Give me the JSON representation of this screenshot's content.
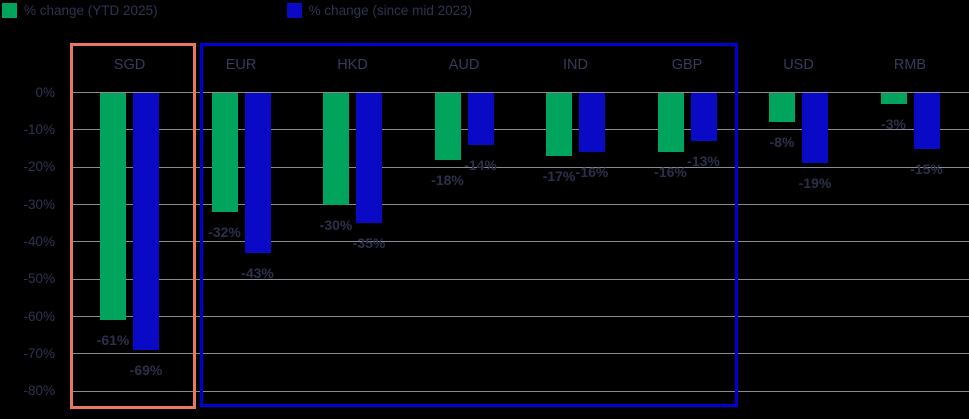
{
  "legend": [
    {
      "label": "% change (YTD 2025)",
      "color": "#00a45c"
    },
    {
      "label": "% change (since mid 2023)",
      "color": "#0909c6"
    }
  ],
  "colors": {
    "background": "#000000",
    "gridline": "#8a8a94",
    "text": "#2e3350",
    "green_series": "#00a45c",
    "blue_series": "#0909c6",
    "highlight_orange": "#e8795f",
    "highlight_blue": "#0000d6"
  },
  "chart_data": {
    "type": "bar",
    "title": "",
    "xlabel": "",
    "ylabel": "",
    "categories": [
      "SGD",
      "EUR",
      "HKD",
      "AUD",
      "IND",
      "GBP",
      "USD",
      "RMB"
    ],
    "series": [
      {
        "name": "% change (YTD 2025)",
        "color": "#00a45c",
        "values": [
          -61,
          -32,
          -30,
          -18,
          -17,
          -16,
          -8,
          -3
        ],
        "labels": [
          "-61%",
          "-32%",
          "-30%",
          "-18%",
          "-17%",
          "-16%",
          "-8%",
          "-3%"
        ]
      },
      {
        "name": "% change (since mid 2023)",
        "color": "#0909c6",
        "values": [
          -69,
          -43,
          -35,
          -14,
          -16,
          -13,
          -19,
          -15
        ],
        "labels": [
          "-69%",
          "-43%",
          "-35%",
          "-14%",
          "-16%",
          "-13%",
          "-19%",
          "-15%"
        ]
      }
    ],
    "ylim": [
      -80,
      0
    ],
    "yticks": [
      "0%",
      "-10%",
      "-20%",
      "-30%",
      "-40%",
      "-50%",
      "-60%",
      "-70%",
      "-80%"
    ],
    "grid": true,
    "legend_position": "top-left",
    "highlights": [
      {
        "categories": [
          "SGD"
        ],
        "color": "#e8795f"
      },
      {
        "categories": [
          "EUR",
          "HKD",
          "AUD",
          "IND",
          "GBP"
        ],
        "color": "#0000d6"
      }
    ]
  }
}
